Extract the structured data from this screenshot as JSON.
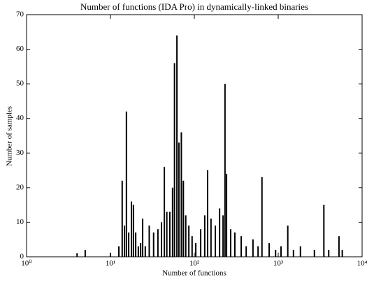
{
  "chart_data": {
    "type": "bar",
    "title": "Number of functions (IDA Pro) in dynamically-linked binaries",
    "x_label": "Number of functions",
    "y_label": "Number of samples",
    "x": [
      4,
      5,
      10,
      12.6,
      13.8,
      14.7,
      15.5,
      16.5,
      17.8,
      18.8,
      20,
      21.5,
      22.9,
      24.2,
      26,
      29,
      32.7,
      36.8,
      40.6,
      43.9,
      47,
      51,
      55,
      58,
      62,
      65.5,
      70,
      74,
      79,
      86,
      94,
      104,
      119,
      133,
      144,
      158,
      178,
      200,
      220,
      232,
      242,
      271,
      304,
      362,
      415,
      500,
      575,
      640,
      780,
      930,
      1080,
      1300,
      1520,
      1840,
      2700,
      3500,
      4000,
      5300,
      5800
    ],
    "values": [
      1,
      2,
      1,
      3,
      22,
      9,
      42,
      7,
      16,
      15,
      7,
      3,
      4,
      11,
      3,
      9,
      7,
      8,
      10,
      26,
      13,
      13,
      20,
      56,
      64,
      33,
      36,
      22,
      12,
      9,
      6,
      4,
      8,
      12,
      25,
      11,
      9,
      14,
      12,
      50,
      24,
      8,
      7,
      6,
      3,
      5,
      3,
      23,
      4,
      2,
      3,
      9,
      2,
      3,
      2,
      15,
      2,
      6,
      2
    ],
    "color": "#000000",
    "x_scale": "log",
    "xlim": [
      1,
      10000
    ],
    "xticks": [
      {
        "value": 1,
        "label": "10⁰"
      },
      {
        "value": 10,
        "label": "10¹"
      },
      {
        "value": 100,
        "label": "10²"
      },
      {
        "value": 1000,
        "label": "10³"
      },
      {
        "value": 10000,
        "label": "10⁴"
      }
    ],
    "ylim": [
      0,
      70
    ],
    "yticks": [
      0,
      10,
      20,
      30,
      40,
      50,
      60,
      70
    ]
  }
}
